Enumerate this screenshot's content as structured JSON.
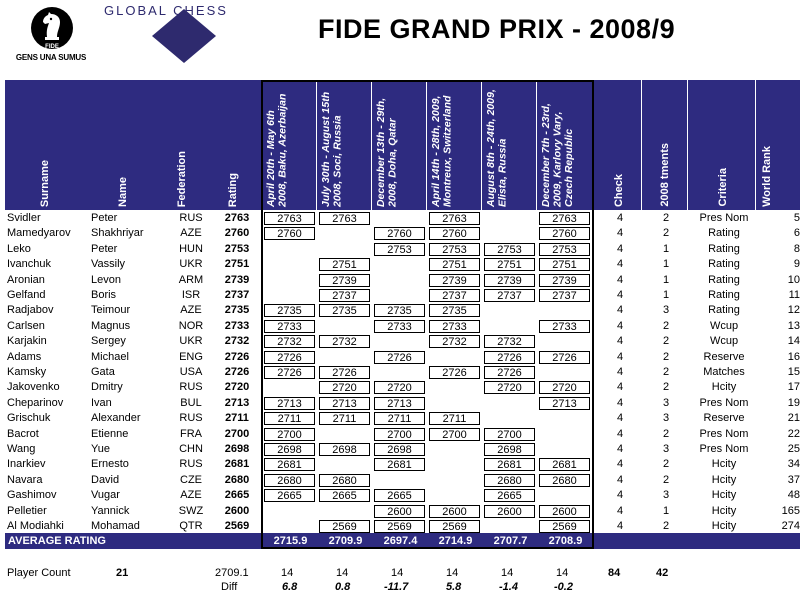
{
  "header": {
    "fide_motto": "GENS UNA SUMUS",
    "fide_mark": "FIDE",
    "globalchess_text": "GLOBAL CHESS",
    "title": "FIDE GRAND PRIX - 2008/9"
  },
  "colors": {
    "band": "#2e2b80",
    "logo": "#2e2a6e"
  },
  "columns": {
    "surname": "Surname",
    "name": "Name",
    "federation": "Federation",
    "rating": "Rating",
    "events": [
      "April 20th - May 6th 2008, Baku, Azerbaijan",
      "July 30th - August 15th 2008, Soci, Russia",
      "December 13th - 29th, 2008, Doha, Qatar",
      "April 14th - 28th, 2009, Montreux, Switzerland",
      "August 8th - 24th, 2009, Elista, Russia",
      "December 7th - 23rd, 2009, Karlovy Vary, Czech Republic"
    ],
    "check": "Check",
    "tournaments": "2008 tments",
    "criteria": "Criteria",
    "world_rank": "World Rank"
  },
  "players": [
    {
      "surname": "Svidler",
      "name": "Peter",
      "fed": "RUS",
      "rating": "2763",
      "events": [
        "2763",
        "2763",
        "",
        "2763",
        "",
        "2763"
      ],
      "check": "4",
      "tm": "2",
      "criteria": "Pres Nom",
      "rank": "5"
    },
    {
      "surname": "Mamedyarov",
      "name": "Shakhriyar",
      "fed": "AZE",
      "rating": "2760",
      "events": [
        "2760",
        "",
        "2760",
        "2760",
        "",
        "2760"
      ],
      "check": "4",
      "tm": "2",
      "criteria": "Rating",
      "rank": "6"
    },
    {
      "surname": "Leko",
      "name": "Peter",
      "fed": "HUN",
      "rating": "2753",
      "events": [
        "",
        "",
        "2753",
        "2753",
        "2753",
        "2753"
      ],
      "check": "4",
      "tm": "1",
      "criteria": "Rating",
      "rank": "8"
    },
    {
      "surname": "Ivanchuk",
      "name": "Vassily",
      "fed": "UKR",
      "rating": "2751",
      "events": [
        "",
        "2751",
        "",
        "2751",
        "2751",
        "2751"
      ],
      "check": "4",
      "tm": "1",
      "criteria": "Rating",
      "rank": "9"
    },
    {
      "surname": "Aronian",
      "name": "Levon",
      "fed": "ARM",
      "rating": "2739",
      "events": [
        "",
        "2739",
        "",
        "2739",
        "2739",
        "2739"
      ],
      "check": "4",
      "tm": "1",
      "criteria": "Rating",
      "rank": "10"
    },
    {
      "surname": "Gelfand",
      "name": "Boris",
      "fed": "ISR",
      "rating": "2737",
      "events": [
        "",
        "2737",
        "",
        "2737",
        "2737",
        "2737"
      ],
      "check": "4",
      "tm": "1",
      "criteria": "Rating",
      "rank": "11"
    },
    {
      "surname": "Radjabov",
      "name": "Teimour",
      "fed": "AZE",
      "rating": "2735",
      "events": [
        "2735",
        "2735",
        "2735",
        "2735",
        "",
        ""
      ],
      "check": "4",
      "tm": "3",
      "criteria": "Rating",
      "rank": "12"
    },
    {
      "surname": "Carlsen",
      "name": "Magnus",
      "fed": "NOR",
      "rating": "2733",
      "events": [
        "2733",
        "",
        "2733",
        "2733",
        "",
        "2733"
      ],
      "check": "4",
      "tm": "2",
      "criteria": "Wcup",
      "rank": "13"
    },
    {
      "surname": "Karjakin",
      "name": "Sergey",
      "fed": "UKR",
      "rating": "2732",
      "events": [
        "2732",
        "2732",
        "",
        "2732",
        "2732",
        ""
      ],
      "check": "4",
      "tm": "2",
      "criteria": "Wcup",
      "rank": "14"
    },
    {
      "surname": "Adams",
      "name": "Michael",
      "fed": "ENG",
      "rating": "2726",
      "events": [
        "2726",
        "",
        "2726",
        "",
        "2726",
        "2726"
      ],
      "check": "4",
      "tm": "2",
      "criteria": "Reserve",
      "rank": "16"
    },
    {
      "surname": "Kamsky",
      "name": "Gata",
      "fed": "USA",
      "rating": "2726",
      "events": [
        "2726",
        "2726",
        "",
        "2726",
        "2726",
        ""
      ],
      "check": "4",
      "tm": "2",
      "criteria": "Matches",
      "rank": "15"
    },
    {
      "surname": "Jakovenko",
      "name": "Dmitry",
      "fed": "RUS",
      "rating": "2720",
      "events": [
        "",
        "2720",
        "2720",
        "",
        "2720",
        "2720"
      ],
      "check": "4",
      "tm": "2",
      "criteria": "Hcity",
      "rank": "17"
    },
    {
      "surname": "Cheparinov",
      "name": "Ivan",
      "fed": "BUL",
      "rating": "2713",
      "events": [
        "2713",
        "2713",
        "2713",
        "",
        "",
        "2713"
      ],
      "check": "4",
      "tm": "3",
      "criteria": "Pres Nom",
      "rank": "19"
    },
    {
      "surname": "Grischuk",
      "name": "Alexander",
      "fed": "RUS",
      "rating": "2711",
      "events": [
        "2711",
        "2711",
        "2711",
        "2711",
        "",
        ""
      ],
      "check": "4",
      "tm": "3",
      "criteria": "Reserve",
      "rank": "21"
    },
    {
      "surname": "Bacrot",
      "name": "Etienne",
      "fed": "FRA",
      "rating": "2700",
      "events": [
        "2700",
        "",
        "2700",
        "2700",
        "2700",
        ""
      ],
      "check": "4",
      "tm": "2",
      "criteria": "Pres Nom",
      "rank": "22"
    },
    {
      "surname": "Wang",
      "name": "Yue",
      "fed": "CHN",
      "rating": "2698",
      "events": [
        "2698",
        "2698",
        "2698",
        "",
        "2698",
        ""
      ],
      "check": "4",
      "tm": "3",
      "criteria": "Pres Nom",
      "rank": "25"
    },
    {
      "surname": "Inarkiev",
      "name": "Ernesto",
      "fed": "RUS",
      "rating": "2681",
      "events": [
        "2681",
        "",
        "2681",
        "",
        "2681",
        "2681"
      ],
      "check": "4",
      "tm": "2",
      "criteria": "Hcity",
      "rank": "34"
    },
    {
      "surname": "Navara",
      "name": "David",
      "fed": "CZE",
      "rating": "2680",
      "events": [
        "2680",
        "2680",
        "",
        "",
        "2680",
        "2680"
      ],
      "check": "4",
      "tm": "2",
      "criteria": "Hcity",
      "rank": "37"
    },
    {
      "surname": "Gashimov",
      "name": "Vugar",
      "fed": "AZE",
      "rating": "2665",
      "events": [
        "2665",
        "2665",
        "2665",
        "",
        "2665",
        ""
      ],
      "check": "4",
      "tm": "3",
      "criteria": "Hcity",
      "rank": "48"
    },
    {
      "surname": "Pelletier",
      "name": "Yannick",
      "fed": "SWZ",
      "rating": "2600",
      "events": [
        "",
        "",
        "2600",
        "2600",
        "2600",
        "2600"
      ],
      "check": "4",
      "tm": "1",
      "criteria": "Hcity",
      "rank": "165"
    },
    {
      "surname": "Al Modiahki",
      "name": "Mohamad",
      "fed": "QTR",
      "rating": "2569",
      "events": [
        "",
        "2569",
        "2569",
        "2569",
        "",
        "2569"
      ],
      "check": "4",
      "tm": "2",
      "criteria": "Hcity",
      "rank": "274"
    }
  ],
  "average": {
    "label": "AVERAGE RATING",
    "values": [
      "2715.9",
      "2709.9",
      "2697.4",
      "2714.9",
      "2707.7",
      "2708.9"
    ]
  },
  "footer": {
    "player_count_label": "Player Count",
    "player_count": "21",
    "overall_average": "2709.1",
    "diff_label": "Diff",
    "counts": [
      "14",
      "14",
      "14",
      "14",
      "14",
      "14"
    ],
    "diffs": [
      "6.8",
      "0.8",
      "-11.7",
      "5.8",
      "-1.4",
      "-0.2"
    ],
    "check_total": "84",
    "tm_total": "42"
  }
}
